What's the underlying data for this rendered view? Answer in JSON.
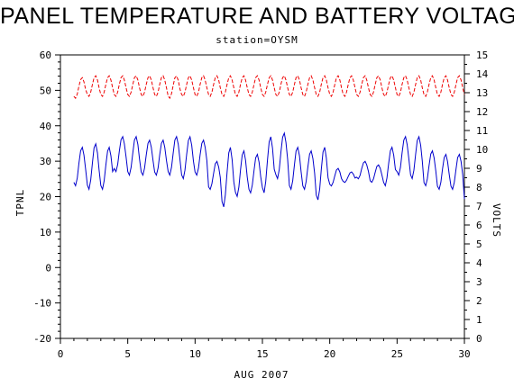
{
  "chart_data": {
    "type": "line",
    "title": "PANEL TEMPERATURE AND BATTERY VOLTAGE",
    "subtitle": "station=OYSM",
    "xlabel": "AUG 2007",
    "ylabel_left": "TPNL",
    "ylabel_right": "VOLTS",
    "xlim": [
      0,
      30
    ],
    "ylim_left": [
      -20,
      60
    ],
    "ylim_right": [
      0,
      15
    ],
    "x_ticks": [
      0,
      5,
      10,
      15,
      20,
      25,
      30
    ],
    "x_tick_labels": [
      "0",
      "5",
      "10",
      "15",
      "20",
      "25",
      "30"
    ],
    "y_left_ticks": [
      -20,
      -10,
      0,
      10,
      20,
      30,
      40,
      50,
      60
    ],
    "y_left_tick_labels": [
      "-20",
      "-10",
      "0",
      "10",
      "20",
      "30",
      "40",
      "50",
      "60"
    ],
    "y_right_ticks": [
      0,
      1,
      2,
      3,
      4,
      5,
      6,
      7,
      8,
      9,
      10,
      11,
      12,
      13,
      14,
      15
    ],
    "y_right_tick_labels": [
      "0",
      "1",
      "2",
      "3",
      "4",
      "5",
      "6",
      "7",
      "8",
      "9",
      "10",
      "11",
      "12",
      "13",
      "14",
      "15"
    ],
    "grid": false,
    "series": [
      {
        "color": "#0000cc",
        "axis": "left",
        "style": "solid",
        "daily_lows": [
          23,
          22,
          22,
          27,
          26,
          26,
          26,
          26,
          25,
          26,
          22,
          17,
          20,
          21,
          21,
          25,
          22,
          22,
          19,
          23,
          24,
          25,
          24,
          23,
          26,
          25,
          23,
          22,
          22,
          18
        ],
        "daily_highs": [
          34,
          35,
          34,
          37,
          37,
          36,
          36,
          37,
          37,
          36,
          30,
          34,
          33,
          32,
          37,
          38,
          34,
          33,
          34,
          28,
          27,
          30,
          29,
          34,
          37,
          37,
          33,
          32,
          32,
          32
        ]
      },
      {
        "color": "#ee0000",
        "axis": "right",
        "style": "dashed",
        "daily_lows": [
          12.7,
          12.8,
          12.8,
          12.8,
          12.8,
          12.8,
          12.8,
          12.7,
          12.8,
          12.8,
          12.8,
          12.8,
          12.8,
          12.8,
          12.8,
          12.8,
          12.8,
          12.8,
          12.8,
          12.8,
          12.8,
          12.8,
          12.8,
          12.8,
          12.8,
          12.8,
          12.8,
          12.8,
          12.8,
          12.8
        ],
        "daily_highs": [
          13.8,
          13.9,
          13.9,
          13.9,
          13.9,
          13.9,
          13.9,
          13.9,
          13.9,
          13.9,
          13.9,
          13.9,
          13.9,
          13.9,
          13.9,
          13.9,
          13.9,
          13.9,
          13.9,
          13.9,
          13.9,
          13.9,
          13.9,
          13.9,
          13.9,
          13.9,
          13.9,
          13.9,
          13.9,
          13.9
        ]
      }
    ]
  }
}
